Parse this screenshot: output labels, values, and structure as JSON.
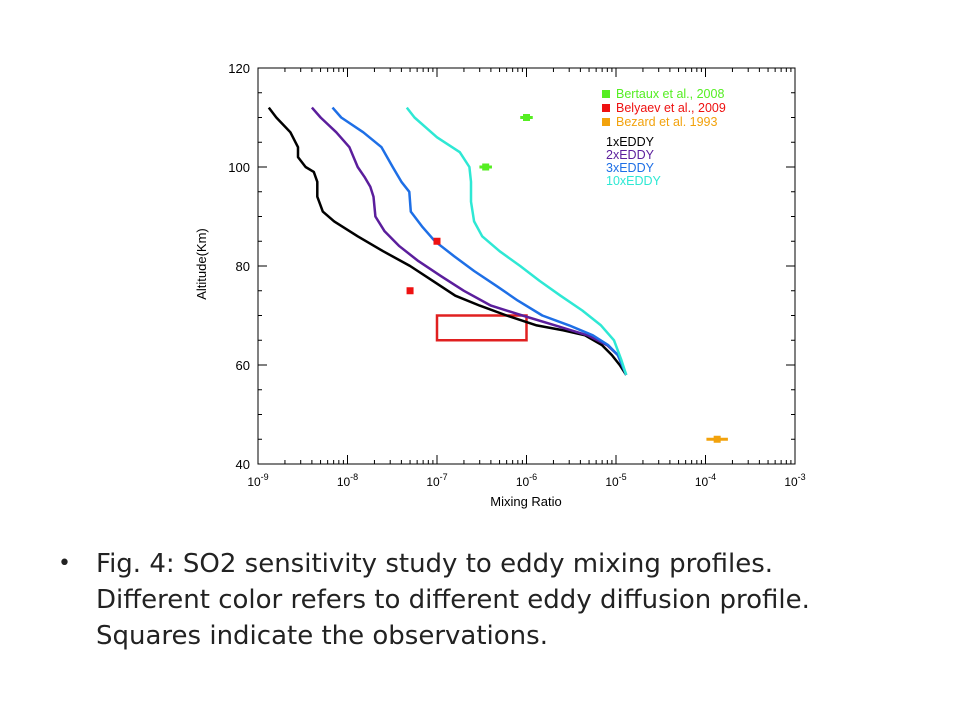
{
  "chart_data": {
    "type": "line",
    "xscale": "log",
    "xlim": [
      1e-09,
      0.001
    ],
    "ylim": [
      40,
      120
    ],
    "xlabel": "Mixing Ratio",
    "ylabel": "Altitude(Km)",
    "yticks": [
      "40",
      "60",
      "80",
      "100",
      "120"
    ],
    "xticks": [
      {
        "value": 1e-09,
        "base": "10",
        "exp": "-9"
      },
      {
        "value": 1e-08,
        "base": "10",
        "exp": "-8"
      },
      {
        "value": 1e-07,
        "base": "10",
        "exp": "-7"
      },
      {
        "value": 1e-06,
        "base": "10",
        "exp": "-6"
      },
      {
        "value": 1e-05,
        "base": "10",
        "exp": "-5"
      },
      {
        "value": 0.0001,
        "base": "10",
        "exp": "-4"
      },
      {
        "value": 0.001,
        "base": "10",
        "exp": "-3"
      }
    ],
    "series": [
      {
        "name": "1xEDDY",
        "color": "#000000",
        "points": [
          [
            1.32e-09,
            112
          ],
          [
            1.6e-09,
            110
          ],
          [
            2.3e-09,
            107
          ],
          [
            2.8e-09,
            104
          ],
          [
            2.8e-09,
            102
          ],
          [
            3.4e-09,
            100
          ],
          [
            4.2e-09,
            99
          ],
          [
            4.6e-09,
            97
          ],
          [
            4.6e-09,
            94
          ],
          [
            5.3e-09,
            91
          ],
          [
            7.1e-09,
            89
          ],
          [
            1.3e-08,
            86
          ],
          [
            2.5e-08,
            83
          ],
          [
            5e-08,
            80
          ],
          [
            9e-08,
            77
          ],
          [
            1.6e-07,
            74
          ],
          [
            3e-07,
            72
          ],
          [
            6e-07,
            70
          ],
          [
            1.3e-06,
            68
          ],
          [
            2.6e-06,
            67
          ],
          [
            4.5e-06,
            66
          ],
          [
            7e-06,
            64
          ],
          [
            9e-06,
            62
          ],
          [
            1.1e-05,
            60
          ],
          [
            1.3e-05,
            58
          ]
        ]
      },
      {
        "name": "2xEDDY",
        "color": "#5b1e9c",
        "points": [
          [
            4e-09,
            112
          ],
          [
            5e-09,
            110
          ],
          [
            7.5e-09,
            107
          ],
          [
            1.05e-08,
            104
          ],
          [
            1.3e-08,
            100
          ],
          [
            1.55e-08,
            98
          ],
          [
            1.8e-08,
            96
          ],
          [
            1.95e-08,
            94
          ],
          [
            2.05e-08,
            90
          ],
          [
            2.6e-08,
            87
          ],
          [
            3.8e-08,
            84
          ],
          [
            6.2e-08,
            81
          ],
          [
            1.1e-07,
            78
          ],
          [
            2e-07,
            75
          ],
          [
            4e-07,
            72
          ],
          [
            9e-07,
            70
          ],
          [
            2.1e-06,
            68
          ],
          [
            4.8e-06,
            66
          ],
          [
            8e-06,
            64
          ],
          [
            1.05e-05,
            62
          ],
          [
            1.3e-05,
            58
          ]
        ]
      },
      {
        "name": "3xEDDY",
        "color": "#1e6fe6",
        "points": [
          [
            6.8e-09,
            112
          ],
          [
            8.5e-09,
            110
          ],
          [
            1.5e-08,
            107
          ],
          [
            2.4e-08,
            104
          ],
          [
            3.2e-08,
            100
          ],
          [
            4e-08,
            97
          ],
          [
            4.9e-08,
            95
          ],
          [
            5.1e-08,
            91
          ],
          [
            6.8e-08,
            88
          ],
          [
            9.5e-08,
            85
          ],
          [
            1.55e-07,
            82
          ],
          [
            2.6e-07,
            79
          ],
          [
            4.6e-07,
            76
          ],
          [
            8e-07,
            73
          ],
          [
            1.5e-06,
            70
          ],
          [
            3e-06,
            68
          ],
          [
            5.5e-06,
            66
          ],
          [
            8.2e-06,
            64
          ],
          [
            1.05e-05,
            62
          ],
          [
            1.3e-05,
            58
          ]
        ]
      },
      {
        "name": "10xEDDY",
        "color": "#2ee8d4",
        "points": [
          [
            4.6e-08,
            112
          ],
          [
            5.6e-08,
            110
          ],
          [
            1e-07,
            106
          ],
          [
            1.8e-07,
            103
          ],
          [
            2.3e-07,
            100
          ],
          [
            2.4e-07,
            97
          ],
          [
            2.4e-07,
            93
          ],
          [
            2.6e-07,
            89
          ],
          [
            3.2e-07,
            86
          ],
          [
            5e-07,
            83
          ],
          [
            8.5e-07,
            80
          ],
          [
            1.4e-06,
            77
          ],
          [
            2.4e-06,
            74
          ],
          [
            4.2e-06,
            71
          ],
          [
            6.8e-06,
            68
          ],
          [
            9.5e-06,
            65
          ],
          [
            1.15e-05,
            61
          ],
          [
            1.3e-05,
            58
          ]
        ]
      }
    ],
    "observations": [
      {
        "name": "Bertaux et al., 2008",
        "color": "#55ee22",
        "points": [
          [
            3.5e-07,
            100
          ],
          [
            1e-06,
            110
          ]
        ],
        "xerr_dec": 0.07
      },
      {
        "name": "Belyaev et al., 2009",
        "color": "#ee1111",
        "points": [
          [
            1e-07,
            85
          ],
          [
            5e-08,
            75
          ]
        ],
        "xerr_dec": 0
      },
      {
        "name": "Bezard et al. 1993",
        "color": "#f2a20c",
        "points": [
          [
            0.000135,
            45
          ]
        ],
        "xerr_dec": 0.12
      }
    ],
    "box": {
      "color": "#e02020",
      "x": [
        1e-07,
        1e-06
      ],
      "y": [
        65,
        70
      ]
    }
  },
  "caption": {
    "lines": [
      "Fig. 4: SO2 sensitivity study to eddy mixing  profiles.",
      "Different color refers to different eddy diffusion profile.",
      "Squares indicate the observations."
    ]
  }
}
